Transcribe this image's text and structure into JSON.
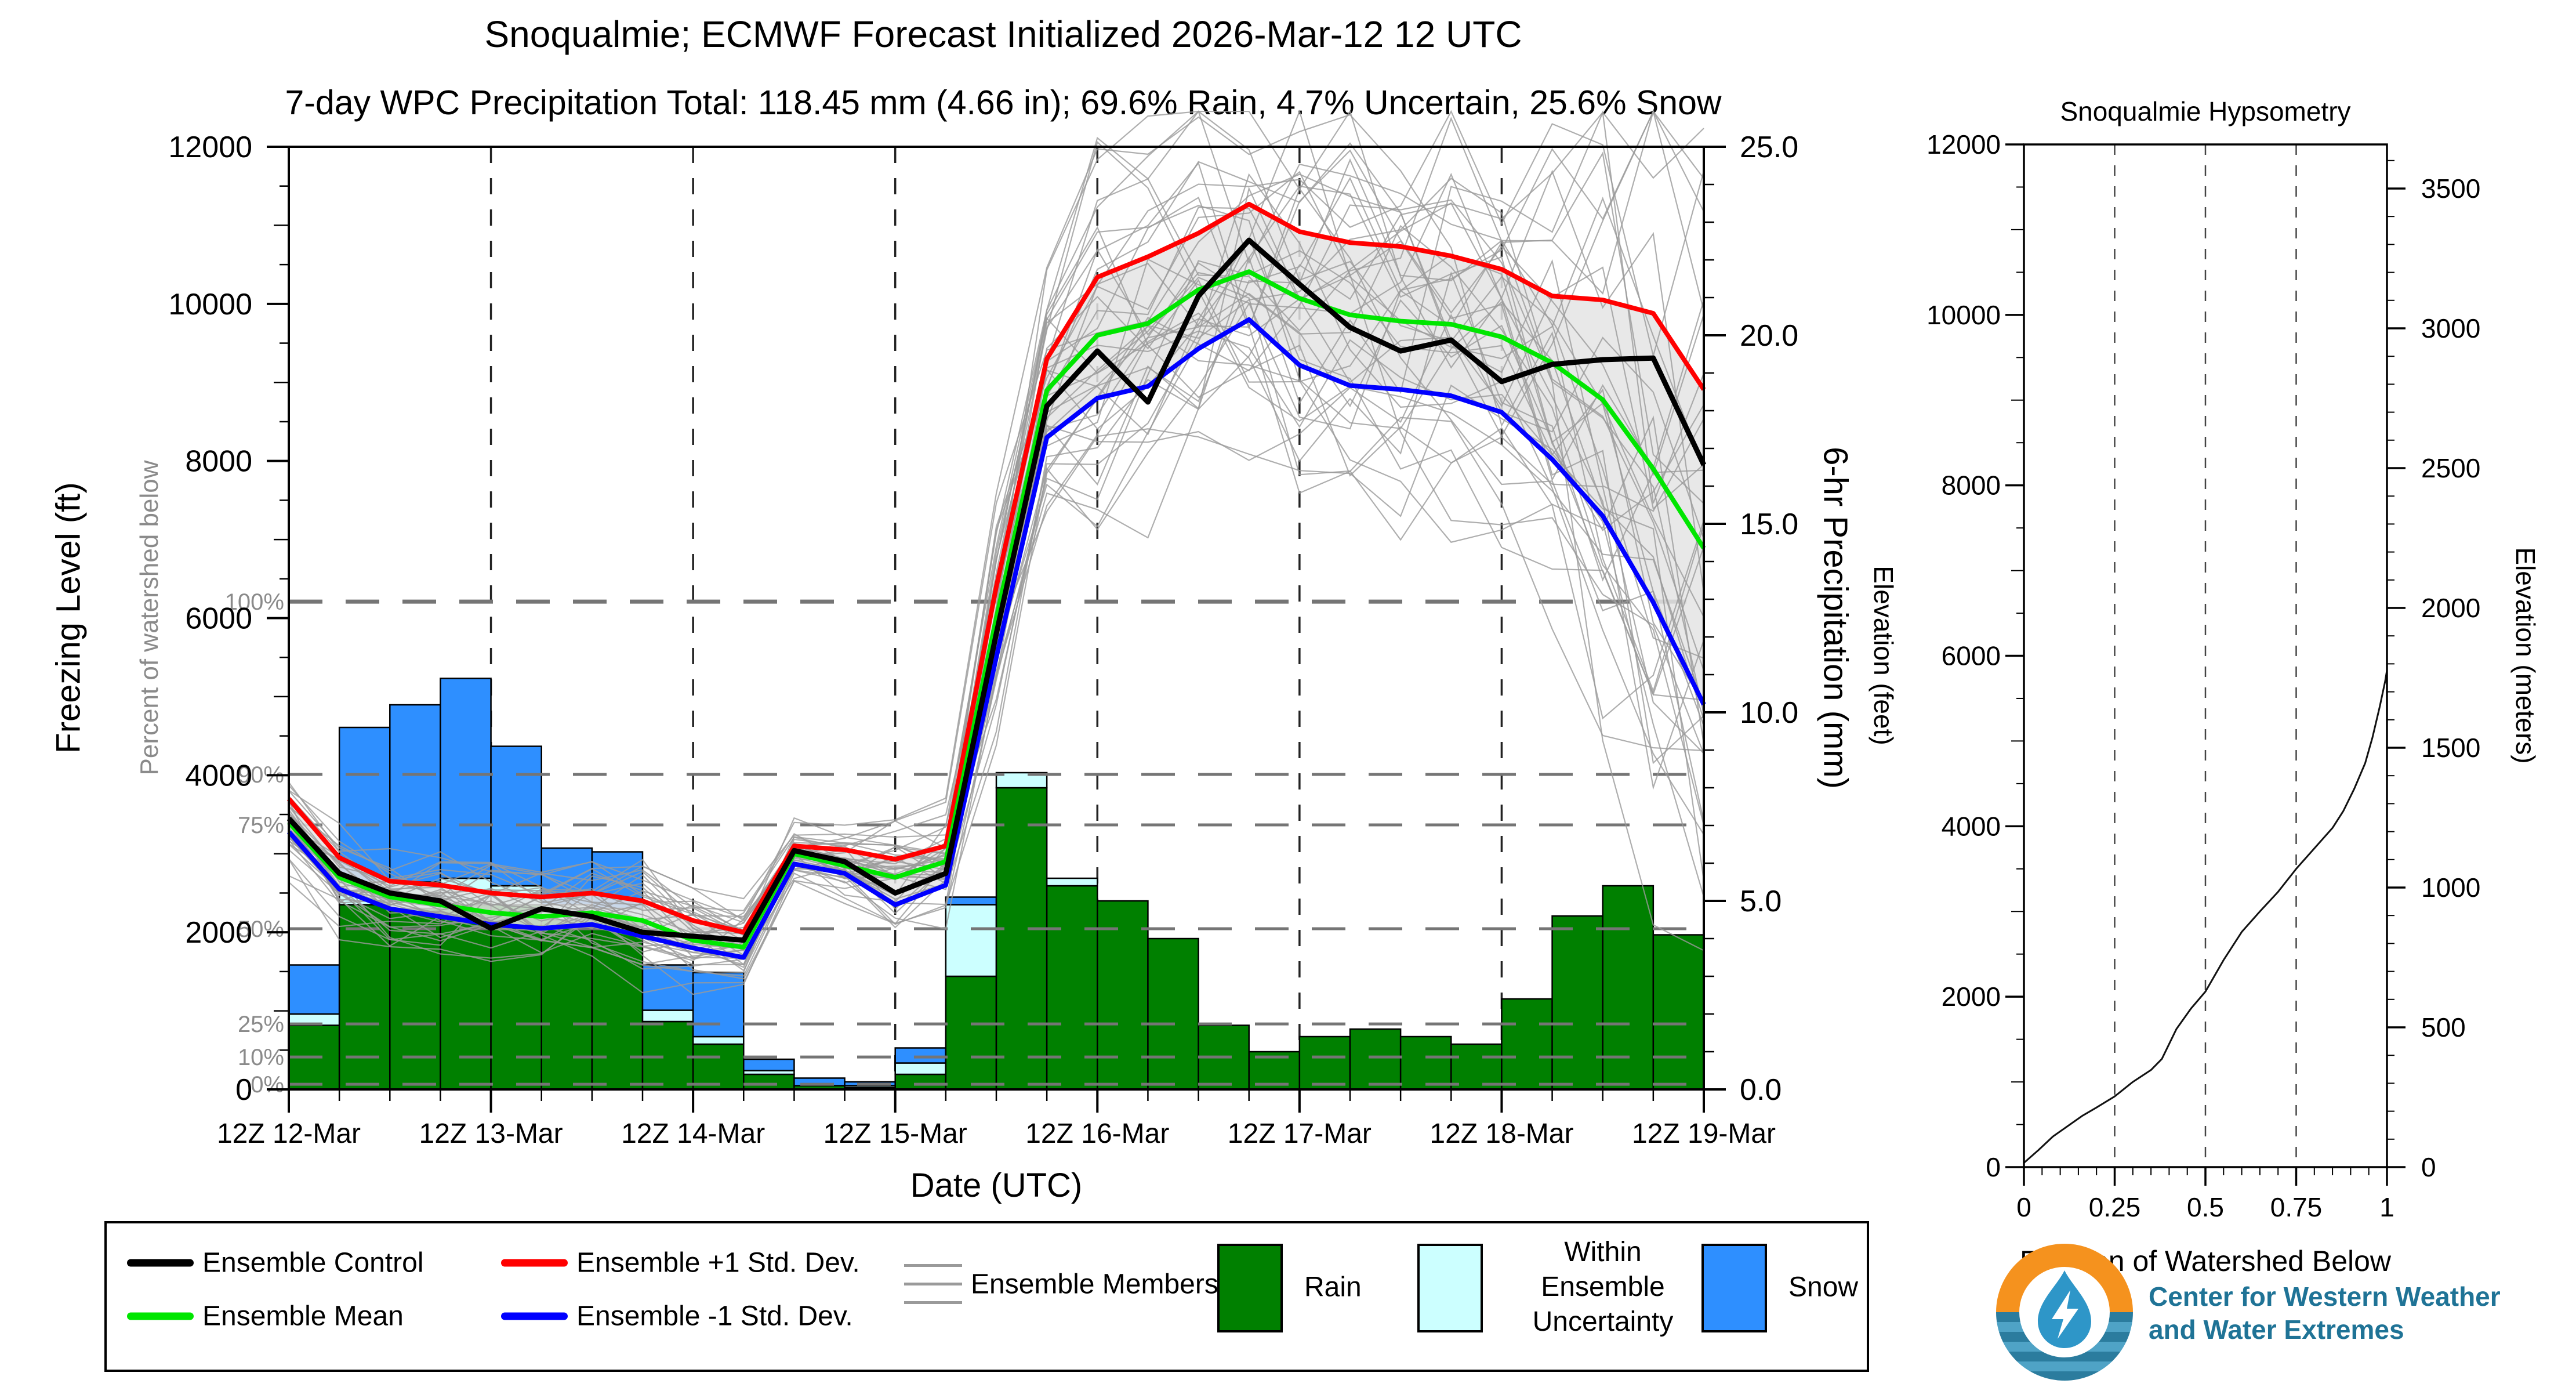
{
  "titles": {
    "line1": "Snoqualmie; ECMWF Forecast Initialized 2026-Mar-12 12 UTC",
    "line2": "7-day WPC Precipitation Total: 118.45 mm (4.66 in);  69.6% Rain, 4.7% Uncertain, 25.6% Snow"
  },
  "axis_labels": {
    "left_main": "Freezing Level (ft)",
    "left_main_secondary": "Percent of watershed below",
    "right_main": "6-hr Precipitation (mm)",
    "x_main": "Date (UTC)",
    "hypso_left": "Elevation (feet)",
    "hypso_right": "Elevation (meters)",
    "hypso_x": "Fraction of Watershed Below",
    "hypso_title": "Snoqualmie Hypsometry"
  },
  "colors": {
    "rain": "#008000",
    "uncertain": "#CCFFFF",
    "snow": "#2E8FFF",
    "control": "#000000",
    "mean": "#00E600",
    "plus1": "#FF0000",
    "minus1": "#0000FF",
    "members": "#9a9a9a",
    "band": "#e4e4e4",
    "pct_line": "#757575",
    "logo_orange": "#F5921E",
    "logo_teal": "#2E96C8",
    "logo_stripe_dark": "#2B7C9E",
    "logo_stripe_light": "#4FA3C6"
  },
  "legend": {
    "control": "Ensemble Control",
    "mean": "Ensemble Mean",
    "plus1": "Ensemble +1 Std. Dev.",
    "minus1": "Ensemble -1 Std. Dev.",
    "members": "Ensemble Members",
    "rain": "Rain",
    "uncertain": "Within Ensemble Uncertainty",
    "snow": "Snow"
  },
  "logo": {
    "name_line1": "Center for Western Weather",
    "name_line2": "and Water Extremes"
  },
  "chart_data": [
    {
      "id": "main-forecast",
      "type": "line+bar",
      "title": "Snoqualmie; ECMWF Forecast Initialized 2026-Mar-12 12 UTC",
      "x_tick_labels": [
        "12Z 12-Mar",
        "12Z 13-Mar",
        "12Z 14-Mar",
        "12Z 15-Mar",
        "12Z 16-Mar",
        "12Z 17-Mar",
        "12Z 18-Mar",
        "12Z 19-Mar"
      ],
      "x_hours_step": 6,
      "x_hours_total": 168,
      "left_axis": {
        "label": "Freezing Level (ft)",
        "min": 0,
        "max": 12000,
        "major": 2000,
        "minor": 500,
        "tick_labels": [
          "0",
          "2000",
          "4000",
          "6000",
          "8000",
          "10000",
          "12000"
        ]
      },
      "right_axis": {
        "label": "6-hr Precipitation (mm)",
        "min": 0,
        "max": 25,
        "major": 5,
        "minor": 1,
        "tick_labels": [
          "0.0",
          "5.0",
          "10.0",
          "15.0",
          "20.0",
          "25.0"
        ]
      },
      "percent_gridlines": [
        {
          "label": "100%",
          "ft": 6210
        },
        {
          "label": "90%",
          "ft": 4010
        },
        {
          "label": "75%",
          "ft": 3367
        },
        {
          "label": "50%",
          "ft": 2046
        },
        {
          "label": "25%",
          "ft": 834
        },
        {
          "label": "10%",
          "ft": 413
        },
        {
          "label": "0%",
          "ft": 66
        }
      ],
      "series": [
        {
          "name": "Ensemble Control",
          "color_key": "control",
          "width": 9,
          "values_ft": [
            3450,
            2750,
            2500,
            2400,
            2050,
            2300,
            2200,
            2000,
            1950,
            1900,
            3040,
            2900,
            2500,
            2750,
            5800,
            8700,
            9400,
            8750,
            10100,
            10810,
            10250,
            9700,
            9400,
            9540,
            9010,
            9230,
            9290,
            9310,
            7950
          ]
        },
        {
          "name": "Ensemble Mean",
          "color_key": "mean",
          "width": 8,
          "values_ft": [
            3400,
            2700,
            2450,
            2350,
            2250,
            2200,
            2250,
            2150,
            1900,
            1810,
            3000,
            2850,
            2700,
            2900,
            6000,
            8900,
            9600,
            9750,
            10180,
            10410,
            10070,
            9860,
            9780,
            9740,
            9580,
            9250,
            8780,
            7900,
            6890
          ]
        },
        {
          "name": "Ensemble +1 Std. Dev.",
          "color_key": "plus1",
          "width": 8,
          "values_ft": [
            3700,
            2950,
            2650,
            2600,
            2500,
            2450,
            2500,
            2400,
            2150,
            2000,
            3100,
            3050,
            2930,
            3100,
            6400,
            9300,
            10340,
            10600,
            10900,
            11270,
            10920,
            10780,
            10730,
            10610,
            10440,
            10100,
            10050,
            9880,
            8910
          ]
        },
        {
          "name": "Ensemble -1 Std. Dev.",
          "color_key": "minus1",
          "width": 8,
          "values_ft": [
            3280,
            2550,
            2300,
            2200,
            2100,
            2050,
            2100,
            1950,
            1800,
            1680,
            2870,
            2750,
            2350,
            2600,
            5500,
            8300,
            8800,
            8950,
            9430,
            9800,
            9220,
            8960,
            8910,
            8830,
            8620,
            8020,
            7300,
            6200,
            4900
          ]
        }
      ],
      "ensemble_members": {
        "count": 40,
        "seed": 7,
        "rho": 0.8,
        "spread_scale": 1.35,
        "clamp_sigma": 2.4
      },
      "bars_6hr_mm": {
        "rain": [
          1.7,
          4.9,
          4.8,
          4.9,
          4.9,
          4.5,
          4.5,
          1.8,
          1.2,
          0.4,
          0.1,
          0.05,
          0.4,
          3.0,
          8.0,
          5.4,
          5.0,
          4.0,
          1.7,
          1.0,
          1.4,
          1.6,
          1.4,
          1.2,
          2.4,
          4.6,
          5.4,
          4.1
        ],
        "uncertain": [
          0.3,
          0.6,
          0.7,
          0.7,
          0.5,
          0.4,
          0.3,
          0.3,
          0.2,
          0.1,
          0.0,
          0.05,
          0.3,
          1.9,
          0.4,
          0.2,
          0,
          0,
          0,
          0,
          0,
          0,
          0,
          0,
          0,
          0,
          0,
          0
        ],
        "snow": [
          1.3,
          4.1,
          4.7,
          5.3,
          3.7,
          1.5,
          1.5,
          1.2,
          1.7,
          0.3,
          0.2,
          0.1,
          0.4,
          0.2,
          0,
          0,
          0,
          0,
          0,
          0,
          0,
          0,
          0,
          0,
          0,
          0,
          0,
          0
        ]
      }
    },
    {
      "id": "hypsometry",
      "type": "line",
      "title": "Snoqualmie Hypsometry",
      "xlabel": "Fraction of Watershed Below",
      "x_tick_labels": [
        "0",
        "0.25",
        "0.5",
        "0.75",
        "1"
      ],
      "left_axis": {
        "label": "Elevation (feet)",
        "min": 0,
        "max": 12000,
        "major": 2000,
        "minor": 500,
        "tick_labels": [
          "0",
          "2000",
          "4000",
          "6000",
          "8000",
          "10000",
          "12000"
        ]
      },
      "right_axis": {
        "label": "Elevation (meters)",
        "major_m": 500,
        "minor_m": 100,
        "tick_labels": [
          "0",
          "500",
          "1000",
          "1500",
          "2000",
          "2500",
          "3000",
          "3500"
        ]
      },
      "curve_fraction_feet": [
        [
          0,
          50
        ],
        [
          0.04,
          200
        ],
        [
          0.08,
          360
        ],
        [
          0.12,
          480
        ],
        [
          0.16,
          600
        ],
        [
          0.2,
          700
        ],
        [
          0.25,
          830
        ],
        [
          0.3,
          1000
        ],
        [
          0.35,
          1140
        ],
        [
          0.38,
          1270
        ],
        [
          0.42,
          1620
        ],
        [
          0.46,
          1860
        ],
        [
          0.5,
          2060
        ],
        [
          0.55,
          2430
        ],
        [
          0.6,
          2760
        ],
        [
          0.65,
          3000
        ],
        [
          0.7,
          3230
        ],
        [
          0.75,
          3500
        ],
        [
          0.8,
          3740
        ],
        [
          0.85,
          3980
        ],
        [
          0.88,
          4180
        ],
        [
          0.91,
          4440
        ],
        [
          0.94,
          4740
        ],
        [
          0.96,
          5040
        ],
        [
          0.98,
          5400
        ],
        [
          0.995,
          5700
        ],
        [
          1.0,
          5830
        ]
      ]
    }
  ]
}
